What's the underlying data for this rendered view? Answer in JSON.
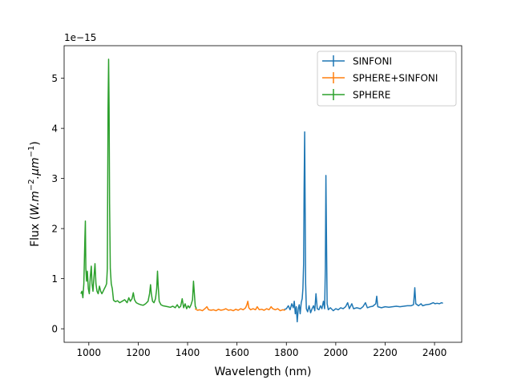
{
  "chart_data": {
    "type": "line",
    "xlabel": "Wavelength (nm)",
    "ylabel_prefix": "Flux (",
    "ylabel_math": "W.m",
    "ylabel_exp1": "−2",
    "ylabel_mid": ".μm",
    "ylabel_exp2": "−1",
    "ylabel_suffix": ")",
    "offset_text": "1e−15",
    "xlim": [
      900,
      2510
    ],
    "ylim": [
      -0.27,
      5.65
    ],
    "y_scale_note": "values in units of 1e-15",
    "xticks": [
      1000,
      1200,
      1400,
      1600,
      1800,
      2000,
      2200,
      2400
    ],
    "yticks": [
      0,
      1,
      2,
      3,
      4,
      5
    ],
    "legend_position": "upper right",
    "grid": false,
    "series": [
      {
        "name": "SINFONI",
        "color": "#1f77b4",
        "points": [
          [
            1790,
            0.38
          ],
          [
            1800,
            0.4
          ],
          [
            1808,
            0.46
          ],
          [
            1815,
            0.38
          ],
          [
            1822,
            0.5
          ],
          [
            1828,
            0.42
          ],
          [
            1832,
            0.55
          ],
          [
            1836,
            0.3
          ],
          [
            1840,
            0.44
          ],
          [
            1844,
            0.14
          ],
          [
            1848,
            0.4
          ],
          [
            1852,
            0.48
          ],
          [
            1856,
            0.3
          ],
          [
            1860,
            0.52
          ],
          [
            1864,
            0.6
          ],
          [
            1867,
            0.8
          ],
          [
            1870,
            1.3
          ],
          [
            1872,
            2.8
          ],
          [
            1874,
            3.93
          ],
          [
            1876,
            2.4
          ],
          [
            1878,
            0.9
          ],
          [
            1881,
            0.4
          ],
          [
            1886,
            0.34
          ],
          [
            1892,
            0.46
          ],
          [
            1898,
            0.32
          ],
          [
            1904,
            0.4
          ],
          [
            1910,
            0.46
          ],
          [
            1915,
            0.36
          ],
          [
            1920,
            0.7
          ],
          [
            1925,
            0.4
          ],
          [
            1932,
            0.38
          ],
          [
            1938,
            0.46
          ],
          [
            1944,
            0.4
          ],
          [
            1950,
            0.55
          ],
          [
            1955,
            0.4
          ],
          [
            1958,
            1.2
          ],
          [
            1960,
            3.06
          ],
          [
            1962,
            2.0
          ],
          [
            1965,
            0.5
          ],
          [
            1970,
            0.38
          ],
          [
            1978,
            0.42
          ],
          [
            1990,
            0.36
          ],
          [
            2000,
            0.4
          ],
          [
            2010,
            0.38
          ],
          [
            2020,
            0.42
          ],
          [
            2030,
            0.4
          ],
          [
            2040,
            0.44
          ],
          [
            2048,
            0.52
          ],
          [
            2055,
            0.4
          ],
          [
            2065,
            0.5
          ],
          [
            2072,
            0.4
          ],
          [
            2085,
            0.42
          ],
          [
            2100,
            0.4
          ],
          [
            2110,
            0.44
          ],
          [
            2120,
            0.52
          ],
          [
            2128,
            0.42
          ],
          [
            2140,
            0.44
          ],
          [
            2150,
            0.45
          ],
          [
            2162,
            0.5
          ],
          [
            2166,
            0.65
          ],
          [
            2170,
            0.44
          ],
          [
            2185,
            0.42
          ],
          [
            2200,
            0.44
          ],
          [
            2215,
            0.43
          ],
          [
            2230,
            0.44
          ],
          [
            2245,
            0.45
          ],
          [
            2260,
            0.44
          ],
          [
            2275,
            0.45
          ],
          [
            2290,
            0.46
          ],
          [
            2305,
            0.46
          ],
          [
            2315,
            0.48
          ],
          [
            2320,
            0.82
          ],
          [
            2324,
            0.5
          ],
          [
            2335,
            0.46
          ],
          [
            2345,
            0.5
          ],
          [
            2352,
            0.46
          ],
          [
            2365,
            0.48
          ],
          [
            2380,
            0.49
          ],
          [
            2395,
            0.52
          ],
          [
            2402,
            0.5
          ],
          [
            2410,
            0.51
          ],
          [
            2420,
            0.5
          ],
          [
            2428,
            0.52
          ],
          [
            2434,
            0.51
          ]
        ]
      },
      {
        "name": "SPHERE+SINFONI",
        "color": "#ff7f0e",
        "points": [
          [
            1430,
            0.4
          ],
          [
            1440,
            0.37
          ],
          [
            1450,
            0.38
          ],
          [
            1460,
            0.36
          ],
          [
            1470,
            0.4
          ],
          [
            1478,
            0.44
          ],
          [
            1485,
            0.38
          ],
          [
            1495,
            0.37
          ],
          [
            1505,
            0.38
          ],
          [
            1515,
            0.36
          ],
          [
            1525,
            0.39
          ],
          [
            1535,
            0.37
          ],
          [
            1545,
            0.38
          ],
          [
            1555,
            0.4
          ],
          [
            1565,
            0.37
          ],
          [
            1575,
            0.38
          ],
          [
            1585,
            0.36
          ],
          [
            1595,
            0.39
          ],
          [
            1605,
            0.37
          ],
          [
            1615,
            0.4
          ],
          [
            1625,
            0.38
          ],
          [
            1635,
            0.42
          ],
          [
            1640,
            0.48
          ],
          [
            1644,
            0.55
          ],
          [
            1648,
            0.42
          ],
          [
            1655,
            0.38
          ],
          [
            1665,
            0.4
          ],
          [
            1675,
            0.38
          ],
          [
            1682,
            0.44
          ],
          [
            1690,
            0.38
          ],
          [
            1700,
            0.39
          ],
          [
            1710,
            0.37
          ],
          [
            1720,
            0.4
          ],
          [
            1730,
            0.38
          ],
          [
            1738,
            0.44
          ],
          [
            1745,
            0.4
          ],
          [
            1755,
            0.38
          ],
          [
            1765,
            0.4
          ],
          [
            1775,
            0.36
          ],
          [
            1785,
            0.38
          ],
          [
            1795,
            0.37
          ]
        ]
      },
      {
        "name": "SPHERE",
        "color": "#2ca02c",
        "points": [
          [
            968,
            0.7
          ],
          [
            972,
            0.75
          ],
          [
            976,
            0.62
          ],
          [
            980,
            0.9
          ],
          [
            984,
            1.8
          ],
          [
            986,
            2.15
          ],
          [
            988,
            1.2
          ],
          [
            991,
            0.95
          ],
          [
            994,
            1.15
          ],
          [
            998,
            0.8
          ],
          [
            1002,
            0.7
          ],
          [
            1006,
            1.05
          ],
          [
            1010,
            1.25
          ],
          [
            1013,
            0.9
          ],
          [
            1017,
            0.75
          ],
          [
            1021,
            1.05
          ],
          [
            1025,
            1.3
          ],
          [
            1029,
            0.9
          ],
          [
            1033,
            0.75
          ],
          [
            1038,
            0.7
          ],
          [
            1043,
            0.85
          ],
          [
            1048,
            0.75
          ],
          [
            1053,
            0.7
          ],
          [
            1058,
            0.75
          ],
          [
            1063,
            0.8
          ],
          [
            1068,
            0.85
          ],
          [
            1072,
            0.9
          ],
          [
            1075,
            1.2
          ],
          [
            1078,
            4.4
          ],
          [
            1080,
            5.38
          ],
          [
            1082,
            4.4
          ],
          [
            1084,
            2.5
          ],
          [
            1087,
            1.2
          ],
          [
            1091,
            0.9
          ],
          [
            1095,
            0.8
          ],
          [
            1100,
            0.57
          ],
          [
            1108,
            0.54
          ],
          [
            1116,
            0.56
          ],
          [
            1125,
            0.52
          ],
          [
            1135,
            0.55
          ],
          [
            1145,
            0.58
          ],
          [
            1155,
            0.52
          ],
          [
            1162,
            0.62
          ],
          [
            1168,
            0.55
          ],
          [
            1175,
            0.6
          ],
          [
            1180,
            0.72
          ],
          [
            1185,
            0.58
          ],
          [
            1192,
            0.52
          ],
          [
            1200,
            0.5
          ],
          [
            1210,
            0.48
          ],
          [
            1220,
            0.47
          ],
          [
            1230,
            0.5
          ],
          [
            1240,
            0.55
          ],
          [
            1246,
            0.7
          ],
          [
            1250,
            0.88
          ],
          [
            1253,
            0.7
          ],
          [
            1258,
            0.55
          ],
          [
            1264,
            0.52
          ],
          [
            1270,
            0.6
          ],
          [
            1275,
            0.8
          ],
          [
            1278,
            1.15
          ],
          [
            1281,
            0.85
          ],
          [
            1285,
            0.55
          ],
          [
            1292,
            0.48
          ],
          [
            1300,
            0.46
          ],
          [
            1310,
            0.45
          ],
          [
            1320,
            0.44
          ],
          [
            1330,
            0.43
          ],
          [
            1340,
            0.45
          ],
          [
            1350,
            0.42
          ],
          [
            1358,
            0.48
          ],
          [
            1365,
            0.42
          ],
          [
            1372,
            0.45
          ],
          [
            1378,
            0.6
          ],
          [
            1384,
            0.42
          ],
          [
            1390,
            0.5
          ],
          [
            1396,
            0.4
          ],
          [
            1402,
            0.46
          ],
          [
            1408,
            0.42
          ],
          [
            1414,
            0.48
          ],
          [
            1420,
            0.58
          ],
          [
            1424,
            0.95
          ],
          [
            1427,
            0.72
          ],
          [
            1431,
            0.45
          ],
          [
            1436,
            0.4
          ]
        ]
      }
    ]
  }
}
